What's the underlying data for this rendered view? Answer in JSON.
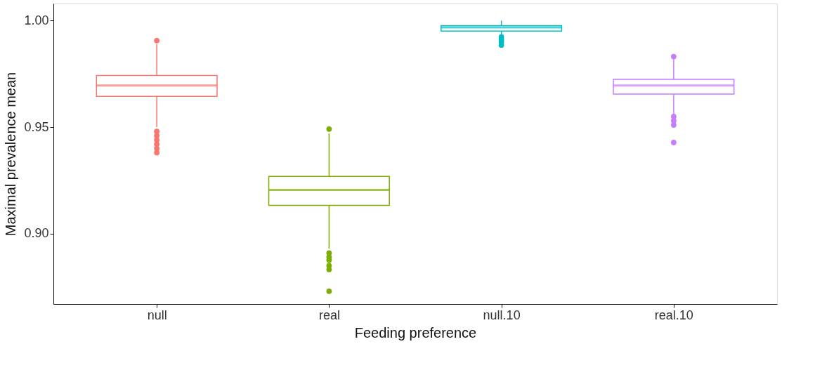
{
  "chart_data": {
    "type": "box",
    "xlabel": "Feeding preference",
    "ylabel": "Maximal prevalence mean",
    "categories": [
      "null",
      "real",
      "null.10",
      "real.10"
    ],
    "colors": [
      "#f8766d",
      "#7cae00",
      "#00bfc4",
      "#c77cff"
    ],
    "boxes": [
      {
        "low": 0.95,
        "q1": 0.9644,
        "median": 0.9695,
        "q3": 0.9742,
        "high": 0.989,
        "outliers": [
          0.9906,
          0.948,
          0.946,
          0.944,
          0.942,
          0.94,
          0.938
        ]
      },
      {
        "low": 0.893,
        "q1": 0.9133,
        "median": 0.9205,
        "q3": 0.9269,
        "high": 0.947,
        "outliers": [
          0.9491,
          0.8909,
          0.889,
          0.8876,
          0.885,
          0.8832,
          0.873
        ]
      },
      {
        "low": 0.993,
        "q1": 0.9951,
        "median": 0.9968,
        "q3": 0.9976,
        "high": 1.0,
        "outliers": [
          0.9923,
          0.991,
          0.99,
          0.9885
        ]
      },
      {
        "low": 0.9555,
        "q1": 0.9655,
        "median": 0.9695,
        "q3": 0.9724,
        "high": 0.9825,
        "outliers": [
          0.9831,
          0.955,
          0.953,
          0.951,
          0.9428
        ]
      }
    ],
    "ylim": [
      0.867,
      1.008
    ],
    "yticks": [
      {
        "value": 0.9,
        "label": "0.90"
      },
      {
        "value": 0.95,
        "label": "0.95"
      },
      {
        "value": 1.0,
        "label": "1.00"
      }
    ],
    "legend": false,
    "grid": false
  }
}
